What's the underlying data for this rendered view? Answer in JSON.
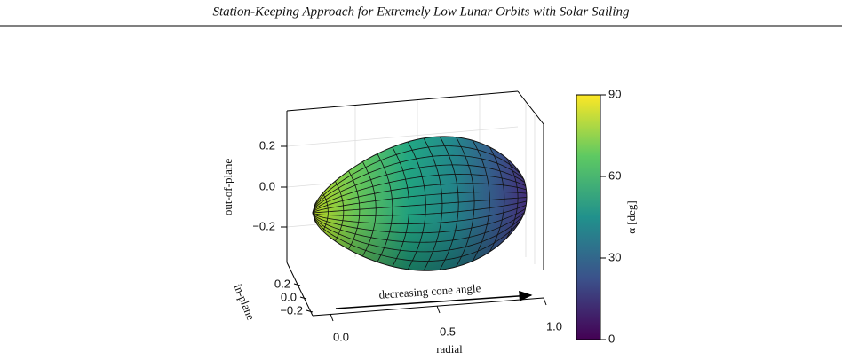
{
  "header": {
    "title": "Station-Keeping Approach for Extremely Low Lunar Orbits with Solar Sailing"
  },
  "figure": {
    "axes": {
      "x": {
        "label": "radial",
        "ticks": [
          "0.0",
          "0.5",
          "1.0"
        ]
      },
      "y": {
        "label": "in-plane",
        "ticks": [
          "0.2",
          "0.0",
          "−0.2"
        ]
      },
      "z": {
        "label": "out-of-plane",
        "ticks": [
          "0.2",
          "0.0",
          "−0.2"
        ]
      }
    },
    "annotation": "decreasing cone angle",
    "colorbar": {
      "label": "α [deg]",
      "ticks": [
        "90",
        "60",
        "30",
        "0"
      ]
    }
  }
}
